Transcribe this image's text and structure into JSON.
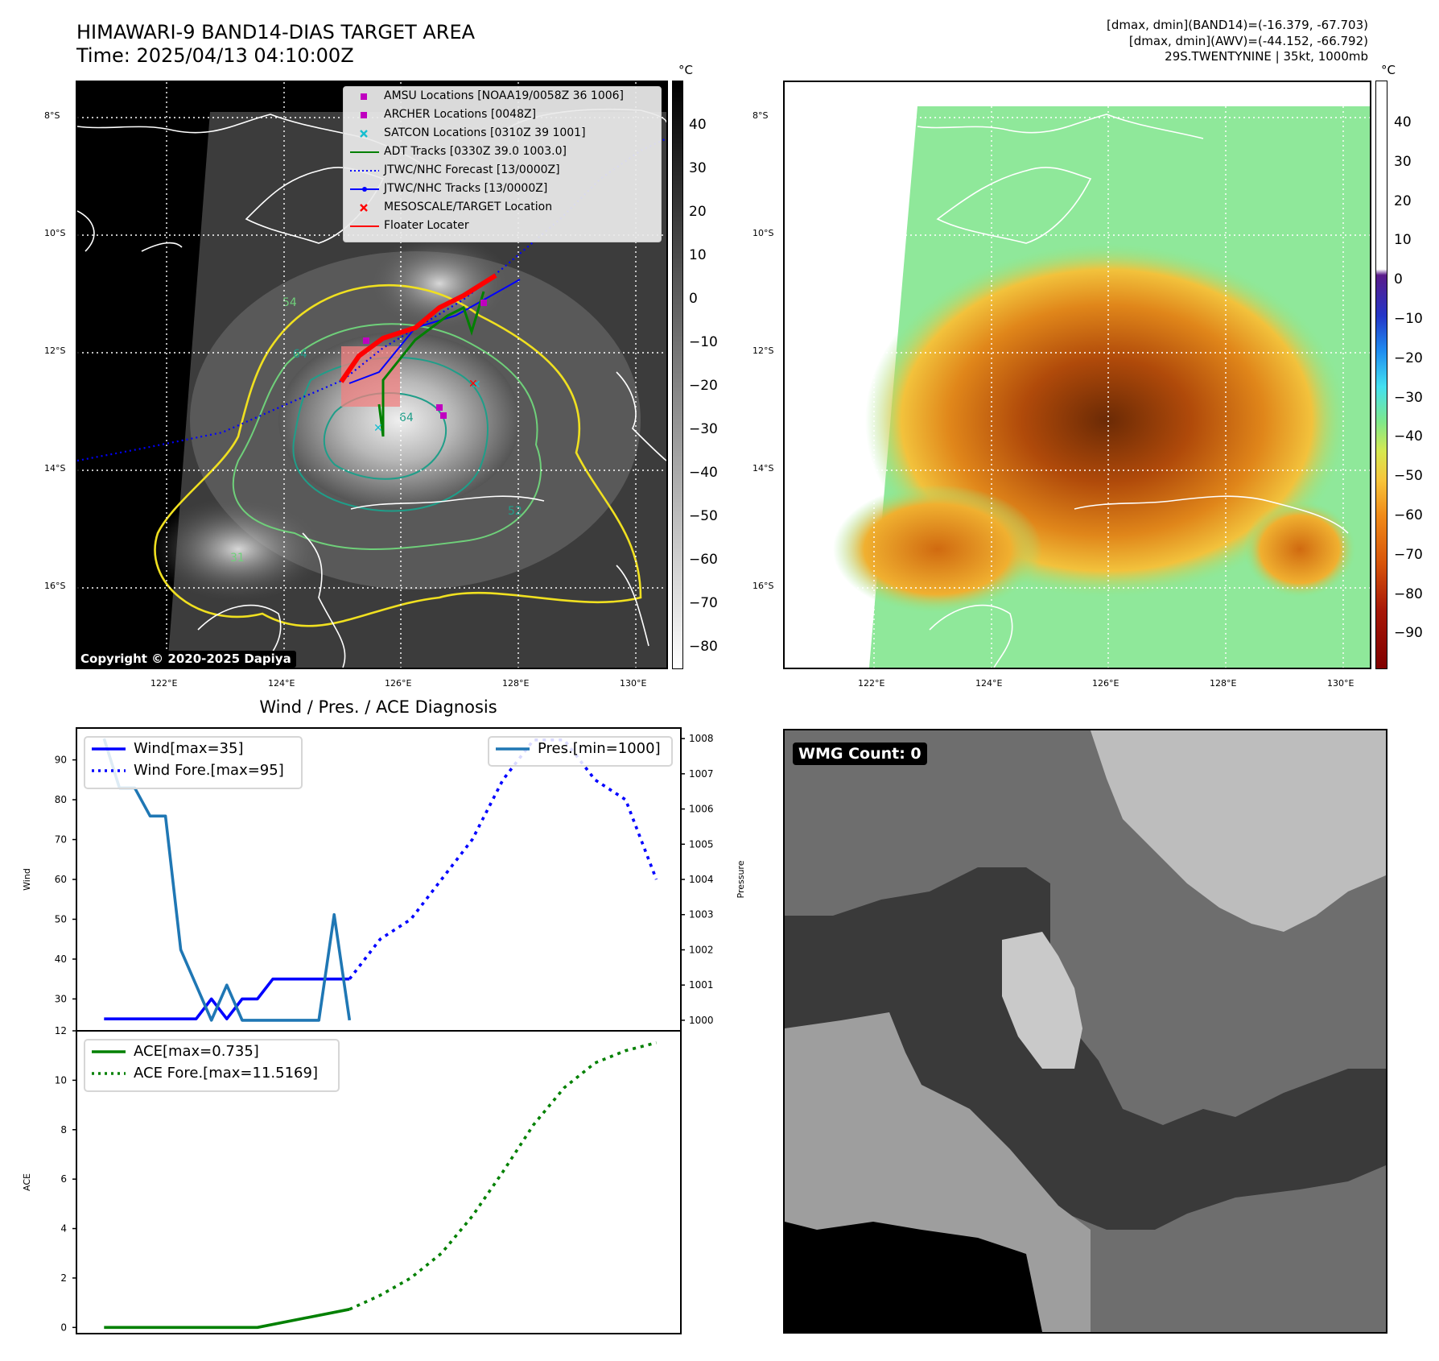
{
  "header": {
    "title_line1": "HIMAWARI-9 BAND14-DIAS TARGET AREA",
    "title_line2": "Time: 2025/04/13 04:10:00Z",
    "right_line1": "[dmax, dmin](BAND14)=(-16.379, -67.703)",
    "right_line2": "[dmax, dmin](AWV)=(-44.152, -66.792)",
    "right_line3": "29S.TWENTYNINE | 35kt, 1000mb"
  },
  "map_axes": {
    "lat_labels": [
      "8°S",
      "10°S",
      "12°S",
      "14°S",
      "16°S"
    ],
    "lon_labels": [
      "122°E",
      "124°E",
      "126°E",
      "128°E",
      "130°E"
    ]
  },
  "ir_map": {
    "colorbar_unit": "°C",
    "colorbar_ticks": [
      "40",
      "30",
      "20",
      "10",
      "0",
      "−10",
      "−20",
      "−30",
      "−40",
      "−50",
      "−60",
      "−70",
      "−80"
    ],
    "contour_labels": [
      "64",
      "64",
      "54",
      "31",
      "52"
    ],
    "copyright": "Copyright © 2020-2025 Dapiya",
    "legend": [
      {
        "label": "AMSU Locations [NOAA19/0058Z 36 1006]",
        "marker": "square",
        "color": "#c000c0"
      },
      {
        "label": "ARCHER Locations [0048Z]",
        "marker": "square",
        "color": "#c000c0"
      },
      {
        "label": "SATCON Locations [0310Z 39 1001]",
        "marker": "x",
        "color": "#17becf"
      },
      {
        "label": "ADT Tracks [0330Z 39.0 1003.0]",
        "marker": "line",
        "color": "#008000"
      },
      {
        "label": "JTWC/NHC Forecast [13/0000Z]",
        "marker": "dotted",
        "color": "#0000ff"
      },
      {
        "label": "JTWC/NHC Tracks [13/0000Z]",
        "marker": "line-dot",
        "color": "#0000ff"
      },
      {
        "label": "MESOSCALE/TARGET Location",
        "marker": "x",
        "color": "#ff0000"
      },
      {
        "label": "Floater Locater",
        "marker": "line",
        "color": "#ff0000"
      }
    ]
  },
  "wv_map": {
    "colorbar_unit": "°C",
    "colorbar_ticks": [
      "40",
      "30",
      "20",
      "10",
      "0",
      "−10",
      "−20",
      "−30",
      "−40",
      "−50",
      "−60",
      "−70",
      "−80",
      "−90"
    ]
  },
  "diagnosis": {
    "title": "Wind / Pres. / ACE Diagnosis",
    "wind_axis_label": "Wind",
    "pressure_axis_label": "Pressure",
    "ace_axis_label": "ACE"
  },
  "wmg": {
    "label": "WMG Count: 0"
  },
  "colors": {
    "wind": "#0000ff",
    "pressure": "#1f77b4",
    "ace": "#008000",
    "contour_yellow": "#f0e020",
    "contour_green": "#6fd07a",
    "contour_teal": "#1f9e89"
  },
  "chart_data": [
    {
      "type": "line",
      "title": "Wind / Pres. / ACE Diagnosis",
      "ylabel": "Wind",
      "ylim": [
        22,
        98
      ],
      "yticks": [
        30,
        40,
        50,
        60,
        70,
        80,
        90
      ],
      "y2label": "Pressure",
      "y2lim": [
        999.7,
        1008.3
      ],
      "y2ticks": [
        1000,
        1001,
        1002,
        1003,
        1004,
        1005,
        1006,
        1007,
        1008
      ],
      "x": [
        0,
        1,
        2,
        3,
        4,
        5,
        6,
        7,
        8,
        9,
        10,
        11,
        12,
        13,
        14,
        15,
        16,
        17,
        18,
        19,
        20,
        21,
        22,
        23,
        24,
        25,
        26,
        27,
        28,
        29,
        30,
        31,
        32,
        33,
        34,
        35,
        36
      ],
      "xlim": [
        -1.8,
        37.6
      ],
      "series": [
        {
          "name": "Wind[max=35]",
          "axis": "left",
          "style": "solid",
          "color": "#0000ff",
          "x": [
            0,
            1,
            2,
            3,
            4,
            5,
            6,
            7,
            8,
            9,
            10,
            11,
            12,
            13,
            14,
            15,
            16
          ],
          "values": [
            25,
            25,
            25,
            25,
            25,
            25,
            25,
            30,
            25,
            30,
            30,
            35,
            35,
            35,
            35,
            35,
            35
          ]
        },
        {
          "name": "Wind Fore.[max=95]",
          "axis": "left",
          "style": "dotted",
          "color": "#0000ff",
          "x": [
            16,
            18,
            20,
            22,
            24,
            26,
            28,
            30,
            32,
            34,
            36
          ],
          "values": [
            35,
            45,
            50,
            60,
            70,
            85,
            95,
            95,
            85,
            80,
            60
          ]
        },
        {
          "name": "Pres.[min=1000]",
          "axis": "right",
          "style": "solid",
          "color": "#1f77b4",
          "x": [
            0,
            1,
            2,
            3,
            4,
            5,
            6,
            7,
            8,
            9,
            10,
            11,
            12,
            13,
            14,
            15,
            16
          ],
          "values": [
            1008,
            1006.6,
            1006.6,
            1005.8,
            1005.8,
            1002,
            1001,
            1000,
            1001,
            1000,
            1000,
            1000,
            1000,
            1000,
            1000,
            1003,
            1000
          ]
        }
      ]
    },
    {
      "type": "line",
      "ylabel": "ACE",
      "ylim": [
        -0.25,
        12.0
      ],
      "yticks": [
        0,
        2,
        4,
        6,
        8,
        10,
        12
      ],
      "xlim": [
        -1.8,
        37.6
      ],
      "series": [
        {
          "name": "ACE[max=0.735]",
          "style": "solid",
          "color": "#008000",
          "x": [
            0,
            10,
            16
          ],
          "values": [
            0,
            0,
            0.735
          ]
        },
        {
          "name": "ACE Fore.[max=11.5169]",
          "style": "dotted",
          "color": "#008000",
          "x": [
            16,
            18,
            20,
            22,
            24,
            26,
            28,
            30,
            32,
            34,
            36
          ],
          "values": [
            0.735,
            1.3,
            2.0,
            3.0,
            4.5,
            6.3,
            8.2,
            9.7,
            10.7,
            11.2,
            11.5169
          ]
        }
      ]
    }
  ]
}
